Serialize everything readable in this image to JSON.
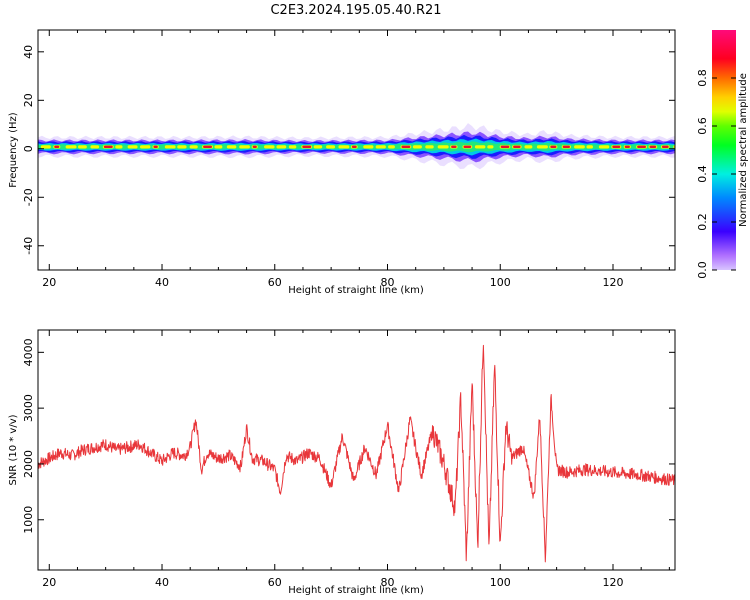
{
  "figure": {
    "title": "C2E3.2024.195.05.40.R21"
  },
  "colors": {
    "snr_line": "#e8363a",
    "band_core": "#e8102a",
    "band_mid": "#22e87a",
    "band_edge": "#1a1aff",
    "band_halo": "#d8c4ff",
    "axis": "#000000"
  },
  "chart_data": [
    {
      "type": "heatmap",
      "xlabel": "Height of straight line (km)",
      "ylabel": "Frequency (Hz)",
      "xlim": [
        18,
        131
      ],
      "ylim": [
        -50,
        49
      ],
      "xticks": [
        20,
        40,
        60,
        80,
        100,
        120
      ],
      "yticks": [
        -40,
        -20,
        0,
        20,
        40
      ],
      "colorbar": {
        "label": "Normalized spectral amplitude",
        "range": [
          0,
          1
        ],
        "ticks": [
          "0.0",
          "0.2",
          "0.4",
          "0.6",
          "0.8"
        ],
        "colormap": "gist_rainbow (purple-blue-cyan-green-yellow-red-magenta)"
      },
      "description_band": {
        "center_hz": 0.8,
        "x": [
          18,
          30,
          45,
          55,
          65,
          80,
          85,
          90,
          95,
          100,
          105,
          108,
          112,
          120,
          131
        ],
        "half_width_hz": [
          2.5,
          2.5,
          2.5,
          2.6,
          2.3,
          2.5,
          3.5,
          4.5,
          5.5,
          4.0,
          3.2,
          4.0,
          3.0,
          2.5,
          2.5
        ]
      }
    },
    {
      "type": "line",
      "xlabel": "Height of straight line (km)",
      "ylabel": "SNR (10 * v/v)",
      "xlim": [
        18,
        131
      ],
      "ylim": [
        100,
        4400
      ],
      "xticks": [
        20,
        40,
        60,
        80,
        100,
        120
      ],
      "yticks": [
        1000,
        2000,
        3000,
        4000
      ],
      "series": [
        {
          "x": [
            18,
            20,
            22,
            24,
            26,
            28,
            30,
            32,
            34,
            36,
            38,
            40,
            42,
            44,
            45,
            46,
            47,
            48,
            50,
            52,
            54,
            55,
            56,
            58,
            60,
            61,
            62,
            64,
            66,
            68,
            70,
            72,
            74,
            76,
            78,
            80,
            82,
            84,
            86,
            88,
            90,
            92,
            93,
            94,
            95,
            96,
            97,
            98,
            99,
            100,
            101,
            102,
            104,
            106,
            107,
            108,
            109,
            110,
            112,
            115,
            120,
            125,
            131
          ],
          "y": [
            2000,
            2100,
            2200,
            2150,
            2250,
            2300,
            2350,
            2250,
            2300,
            2350,
            2200,
            2050,
            2200,
            2150,
            2300,
            2800,
            1900,
            2200,
            2100,
            2150,
            1950,
            2650,
            2100,
            2050,
            1900,
            1500,
            2150,
            2050,
            2200,
            2100,
            1600,
            2500,
            1700,
            2300,
            1800,
            2700,
            1500,
            2800,
            1800,
            2600,
            2000,
            1200,
            3200,
            300,
            3500,
            500,
            4350,
            400,
            3800,
            500,
            2700,
            2100,
            2300,
            1400,
            2900,
            300,
            3200,
            1900,
            1850,
            1900,
            1850,
            1800,
            1700
          ]
        }
      ]
    }
  ]
}
